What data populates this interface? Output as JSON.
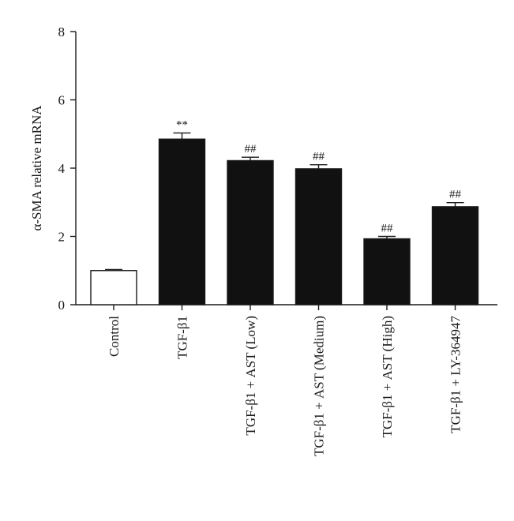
{
  "chart_data": {
    "type": "bar",
    "categories": [
      "Control",
      "TGF-β1",
      "TGF-β1 + AST (Low)",
      "TGF-β1 + AST (Medium)",
      "TGF-β1 + AST (High)",
      "TGF-β1 + LY-364947"
    ],
    "values": [
      1.0,
      4.85,
      4.22,
      3.98,
      1.93,
      2.87
    ],
    "errors": [
      0.03,
      0.18,
      0.1,
      0.12,
      0.07,
      0.12
    ],
    "significance": [
      "",
      "**",
      "##",
      "##",
      "##",
      "##"
    ],
    "bar_colors": [
      "#ffffff",
      "#111111",
      "#111111",
      "#111111",
      "#111111",
      "#111111"
    ],
    "ylabel": "α-SMA relative mRNA",
    "xlabel": "",
    "ylim": [
      0,
      8
    ],
    "yticks": [
      0,
      2,
      4,
      6,
      8
    ],
    "grid": false,
    "legend": "none"
  }
}
